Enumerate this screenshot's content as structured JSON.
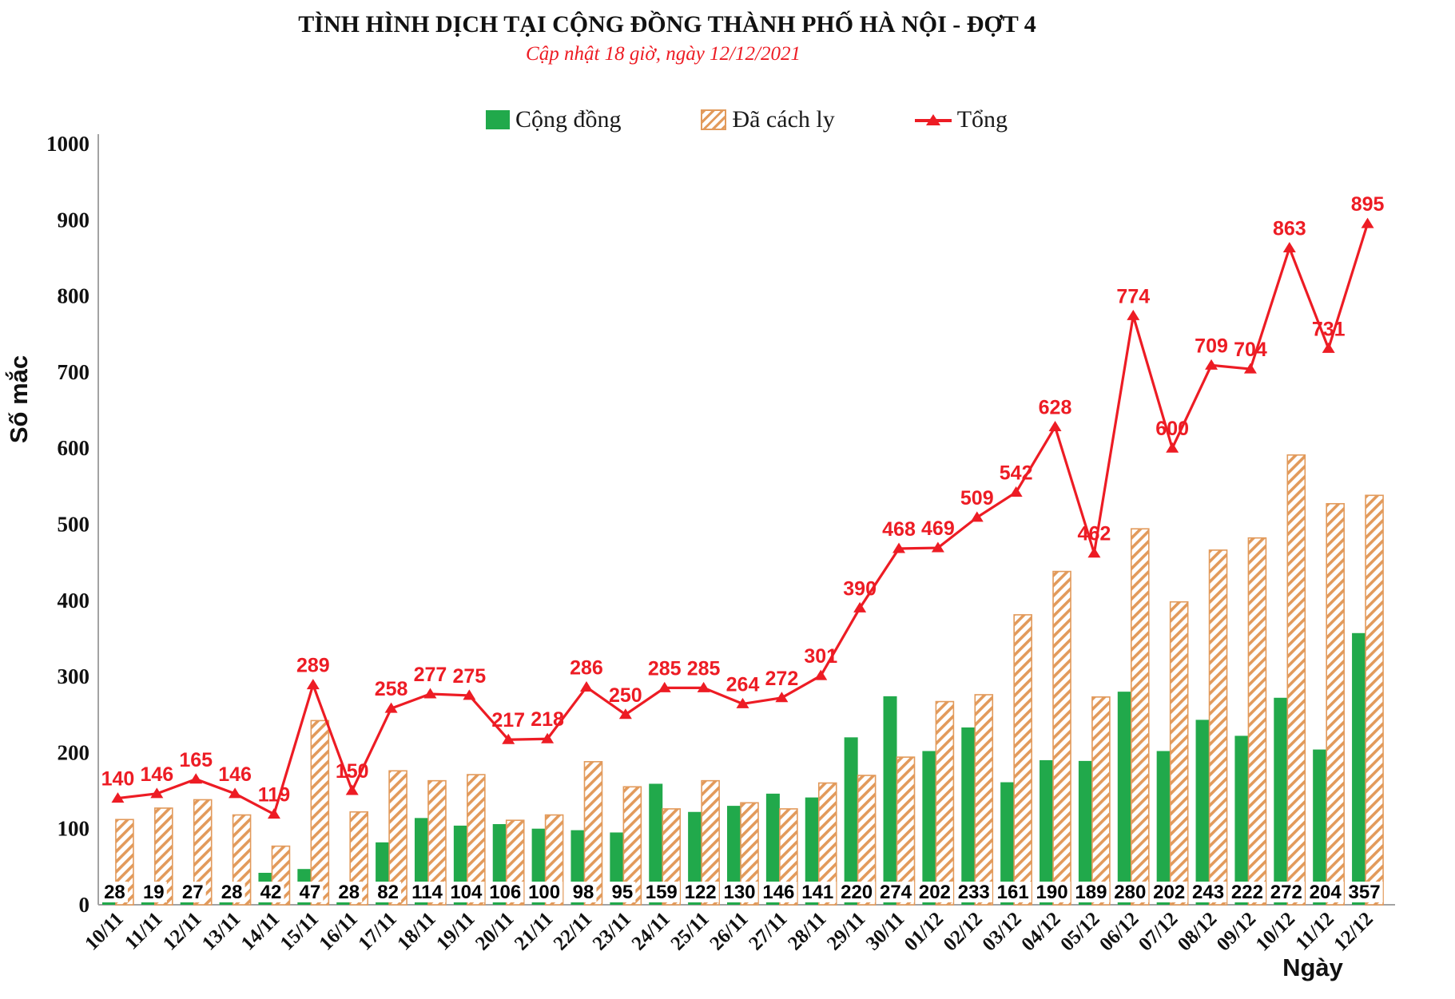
{
  "header": {
    "title": "TÌNH HÌNH DỊCH TẠI CỘNG ĐỒNG THÀNH PHỐ HÀ NỘI - ĐỢT 4",
    "subtitle": "Cập nhật 18 giờ, ngày 12/12/2021"
  },
  "colors": {
    "community_green": "#21a94b",
    "quarantine_orange": "#e29a5b",
    "total_red": "#ed1c24",
    "axis_gray": "#a3a3a3"
  },
  "chart_data": {
    "type": "bar+line combo",
    "title": "TÌNH HÌNH DỊCH TẠI CỘNG ĐỒNG THÀNH PHỐ HÀ NỘI - ĐỢT 4",
    "subtitle": "Cập nhật 18 giờ, ngày 12/12/2021",
    "ylabel": "Số mắc",
    "xlabel": "Ngày",
    "ylim": [
      0,
      1000
    ],
    "ytick_step": 100,
    "grid": false,
    "legend_position": "top",
    "categories": [
      "10/11",
      "11/11",
      "12/11",
      "13/11",
      "14/11",
      "15/11",
      "16/11",
      "17/11",
      "18/11",
      "19/11",
      "20/11",
      "21/11",
      "22/11",
      "23/11",
      "24/11",
      "25/11",
      "26/11",
      "27/11",
      "28/11",
      "29/11",
      "30/11",
      "01/12",
      "02/12",
      "03/12",
      "04/12",
      "05/12",
      "06/12",
      "07/12",
      "08/12",
      "09/12",
      "10/12",
      "11/12",
      "12/12"
    ],
    "series": [
      {
        "name": "Cộng đồng",
        "type": "bar",
        "style": "solid",
        "color": "#21a94b",
        "labels_shown": true,
        "values": [
          28,
          19,
          27,
          28,
          42,
          47,
          28,
          82,
          114,
          104,
          106,
          100,
          98,
          95,
          159,
          122,
          130,
          146,
          141,
          220,
          274,
          202,
          233,
          161,
          190,
          189,
          280,
          202,
          243,
          222,
          272,
          204,
          357
        ]
      },
      {
        "name": "Đã cách ly",
        "type": "bar",
        "style": "hatched",
        "color": "#e29a5b",
        "labels_shown": false,
        "values": [
          112,
          127,
          138,
          118,
          77,
          242,
          122,
          176,
          163,
          171,
          111,
          118,
          188,
          155,
          126,
          163,
          134,
          126,
          160,
          170,
          194,
          267,
          276,
          381,
          438,
          273,
          494,
          398,
          466,
          482,
          591,
          527,
          538
        ]
      },
      {
        "name": "Tổng",
        "type": "line",
        "style": "triangle-markers",
        "color": "#ed1c24",
        "labels_shown": true,
        "values": [
          140,
          146,
          165,
          146,
          119,
          289,
          150,
          258,
          277,
          275,
          217,
          218,
          286,
          250,
          285,
          285,
          264,
          272,
          301,
          390,
          468,
          469,
          509,
          542,
          628,
          462,
          774,
          600,
          709,
          704,
          863,
          731,
          895
        ]
      }
    ]
  }
}
